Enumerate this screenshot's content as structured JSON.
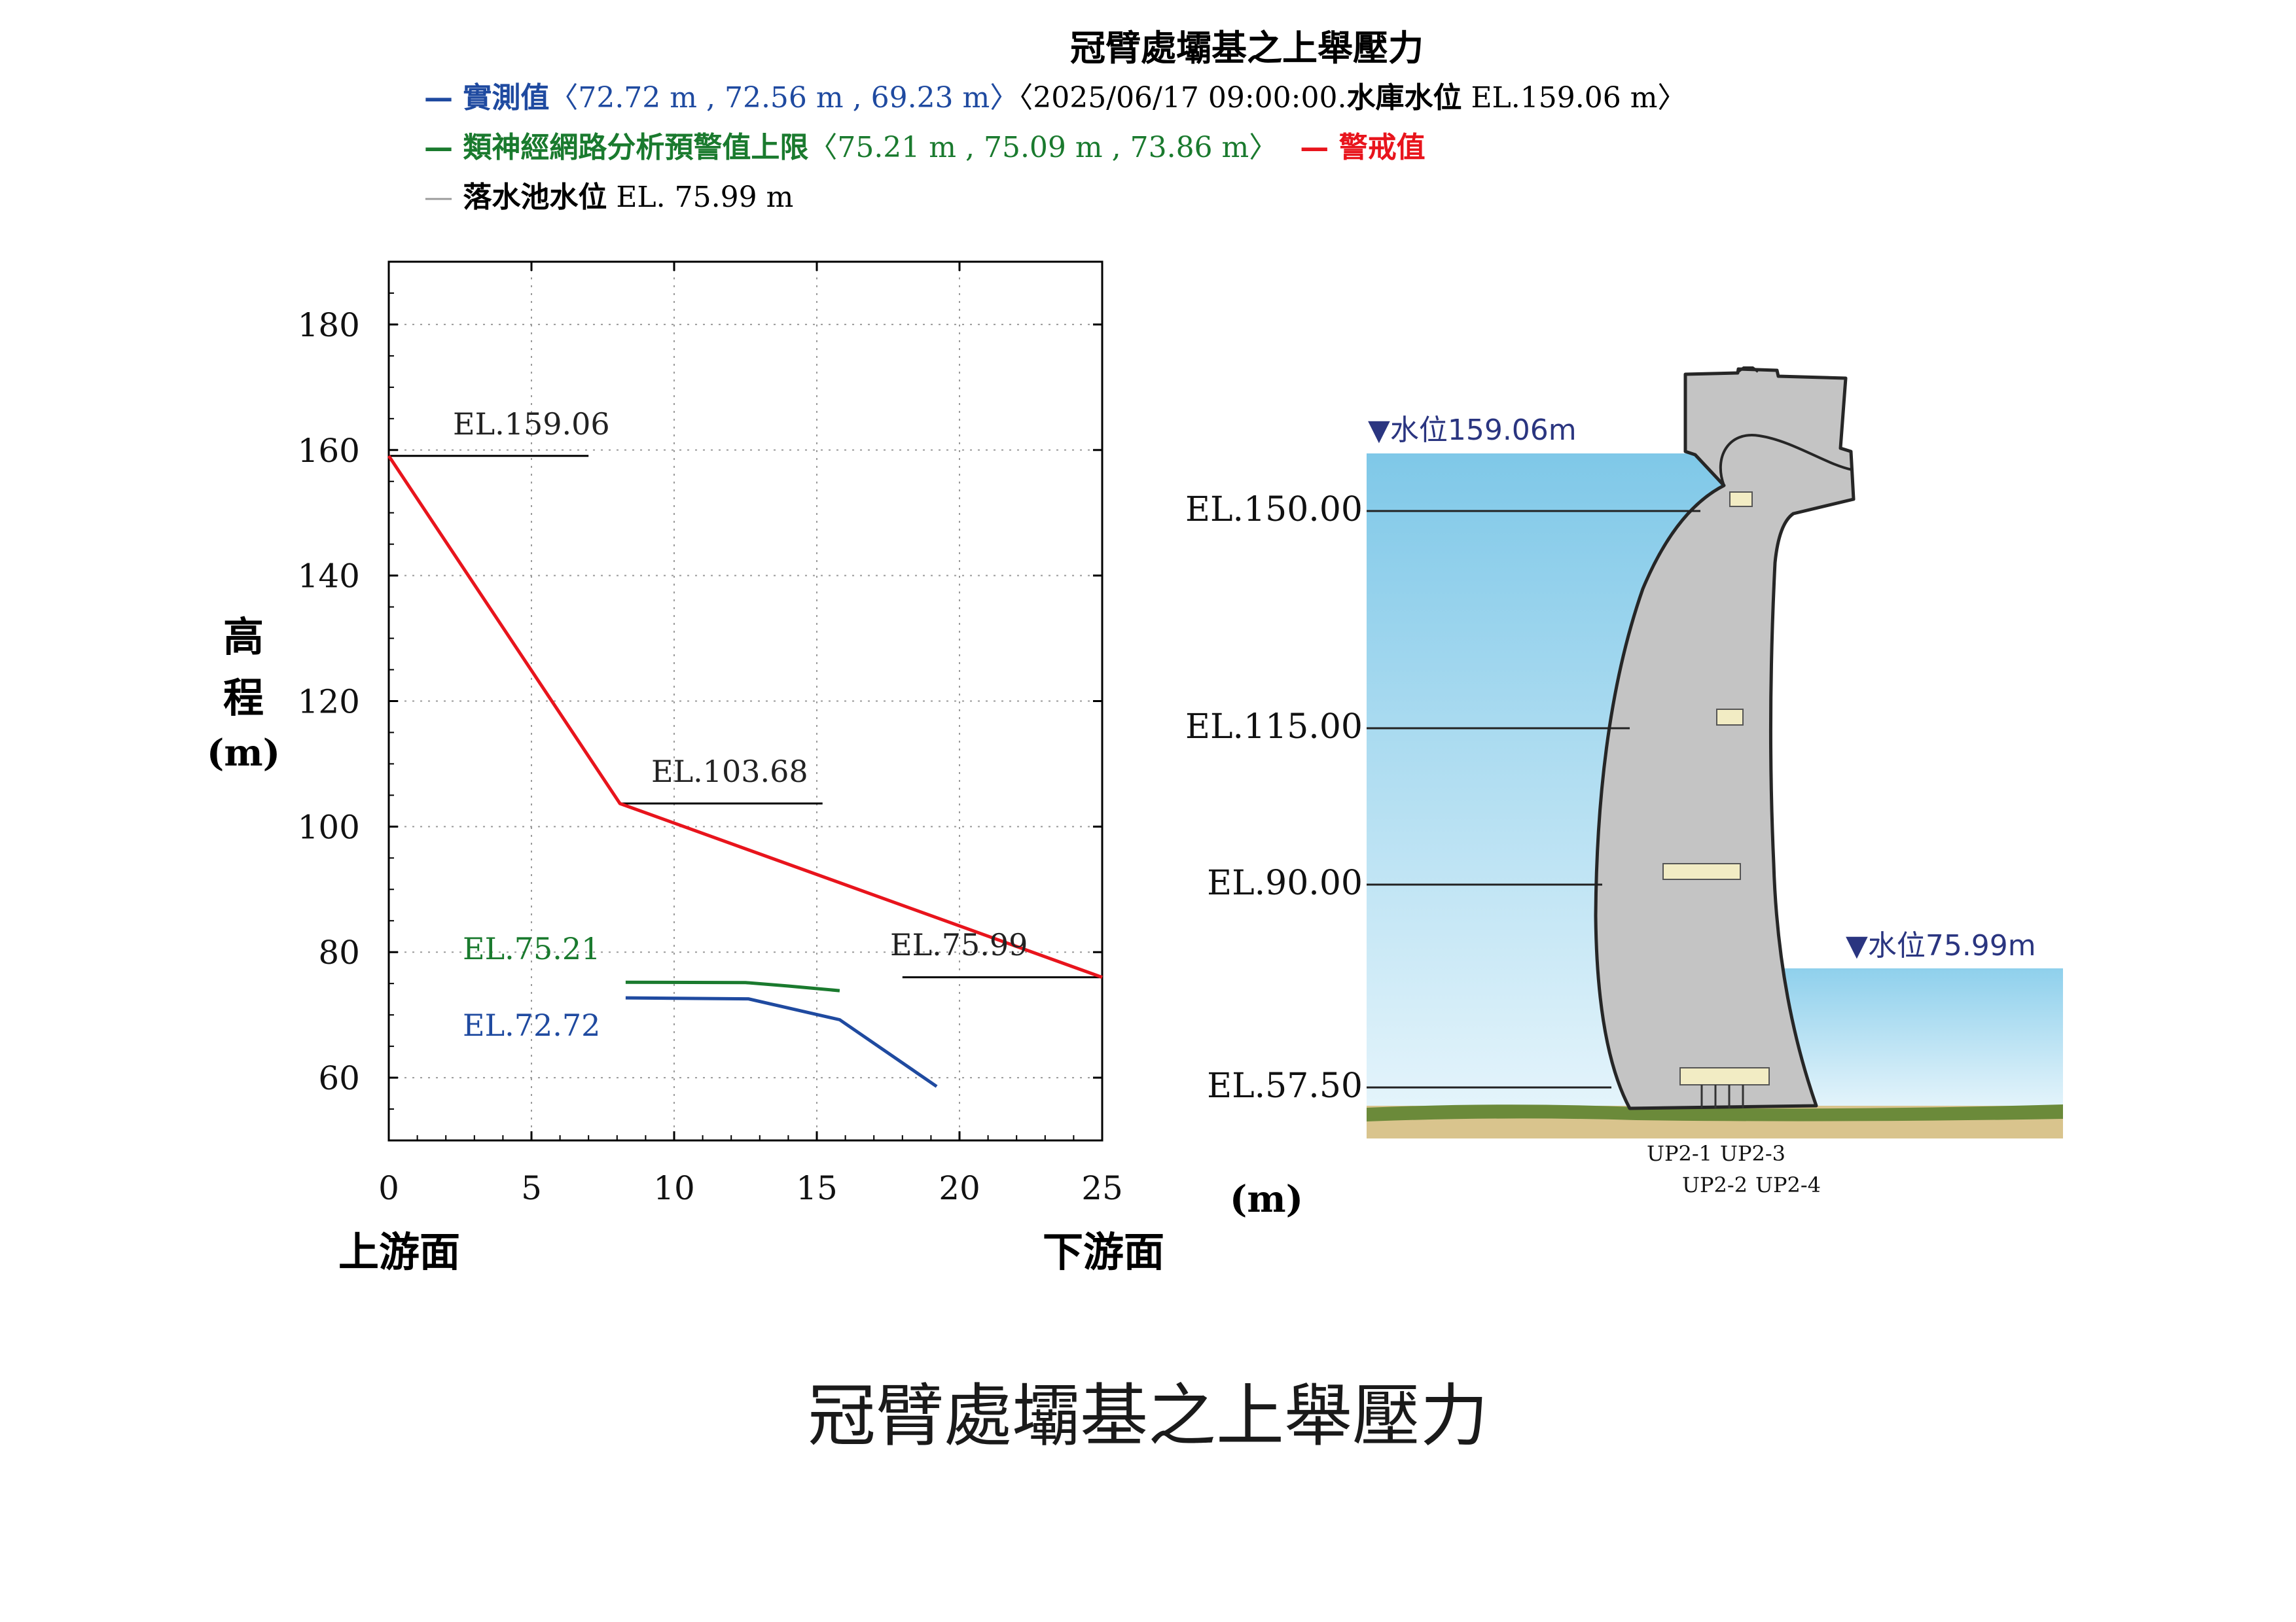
{
  "header": {
    "title": "冠臂處壩基之上舉壓力",
    "legend_measured_label": "— 實測值",
    "legend_measured_values": "〈72.72 m , 72.56 m , 69.23 m〉",
    "legend_measured_time_prefix": "〈2025/06/17 09:00:00.",
    "legend_reservoir_label": "水庫水位",
    "legend_reservoir_value": " EL.159.06 m〉",
    "legend_nn_label": "— 類神經網路分析預警值上限",
    "legend_nn_values": "〈75.21 m , 75.09 m , 73.86 m〉",
    "legend_alert_label": "— 警戒值",
    "legend_tailwater_dash": "—",
    "legend_tailwater_label": " 落水池水位",
    "legend_tailwater_value": " EL. 75.99 m"
  },
  "chart": {
    "ylabel_chars": [
      "高",
      "程"
    ],
    "ylabel_unit": "(m)",
    "xlabel_left": "上游面",
    "xlabel_right": "下游面",
    "x_unit": "(m)",
    "label_alert_start": "EL.159.06",
    "label_alert_mid": "EL.103.68",
    "label_tailwater": "EL.75.99",
    "label_nn": "EL.75.21",
    "label_measured": "EL.72.72"
  },
  "chart_data": {
    "type": "line",
    "xlim": [
      0,
      25
    ],
    "ylim": [
      50,
      190
    ],
    "xticks": [
      0,
      5,
      10,
      15,
      20,
      25
    ],
    "yticks": [
      60,
      80,
      100,
      120,
      140,
      160,
      180
    ],
    "grid": true,
    "series": [
      {
        "name": "警戒值",
        "color": "#e8141c",
        "points": [
          [
            0,
            159.06
          ],
          [
            8.1,
            103.68
          ],
          [
            25,
            75.99
          ]
        ]
      },
      {
        "name": "類神經網路分析預警值上限",
        "color": "#1a7a2e",
        "points": [
          [
            8.3,
            75.21
          ],
          [
            12.5,
            75.15
          ],
          [
            14.0,
            74.6
          ],
          [
            15.8,
            73.86
          ]
        ]
      },
      {
        "name": "實測值",
        "color": "#1f4aa0",
        "points": [
          [
            8.3,
            72.72
          ],
          [
            12.6,
            72.56
          ],
          [
            15.8,
            69.23
          ],
          [
            19.2,
            58.6
          ]
        ]
      }
    ],
    "reference_lines": [
      {
        "y": 159.06,
        "x": [
          0,
          7.0
        ]
      },
      {
        "y": 103.68,
        "x": [
          8.1,
          15.2
        ]
      },
      {
        "y": 75.99,
        "x": [
          18.0,
          25.0
        ]
      }
    ]
  },
  "diagram": {
    "upstream_level_label": "▼水位159.06m",
    "downstream_level_label": "▼水位75.99m",
    "elevations": [
      "EL.150.00",
      "EL.115.00",
      "EL.90.00",
      "EL.57.50"
    ],
    "gauges": [
      "UP2-1",
      "UP2-3",
      "UP2-2",
      "UP2-4"
    ],
    "colors": {
      "water_top": "#7fc8e8",
      "water_bottom": "#ddf1fa",
      "dam": "#c4c4c4",
      "ground": "#d9c48d",
      "grass": "#6b8a3a",
      "gallery": "#f2ecc4"
    }
  },
  "footer": {
    "caption": "冠臂處壩基之上舉壓力"
  }
}
